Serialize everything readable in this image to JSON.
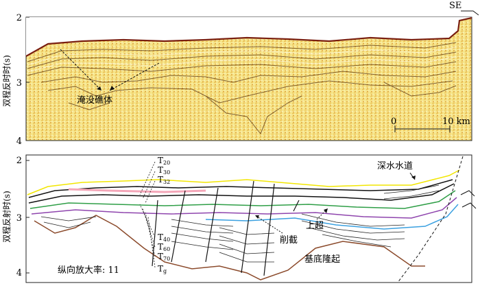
{
  "top_panel": {
    "direction_label": "SE",
    "y_axis_label": "双程反时时(s)",
    "y_ticks": [
      "2",
      "3",
      "4"
    ],
    "reef_label": "淹没礁体",
    "scale_start": "0",
    "scale_end": "10 km"
  },
  "bottom_panel": {
    "y_axis_label": "双程反射时(s)",
    "y_ticks": [
      "2",
      "3",
      "4"
    ],
    "horizons": [
      {
        "base": "T",
        "sub": "20"
      },
      {
        "base": "T",
        "sub": "30"
      },
      {
        "base": "T",
        "sub": "32"
      },
      {
        "base": "T",
        "sub": "40"
      },
      {
        "base": "T",
        "sub": "60"
      },
      {
        "base": "T",
        "sub": "70"
      },
      {
        "base": "T",
        "sub": "g"
      }
    ],
    "channel_label": "深水水道",
    "onlap_label": "上超",
    "truncation_label": "削截",
    "basement_label": "基底隆起",
    "exaggeration_label": "纵向放大率: 11"
  },
  "colors": {
    "seismic_bg": "#f4e27a",
    "reflector": "#5a3410",
    "red_band": "#c0392b",
    "horizon_yellow": "#f2e600",
    "horizon_pink": "#f4a6b8",
    "horizon_green": "#2e9e46",
    "horizon_purple": "#8e44ad",
    "horizon_blue": "#3aa0e0",
    "horizon_brown": "#8b4a2b"
  }
}
